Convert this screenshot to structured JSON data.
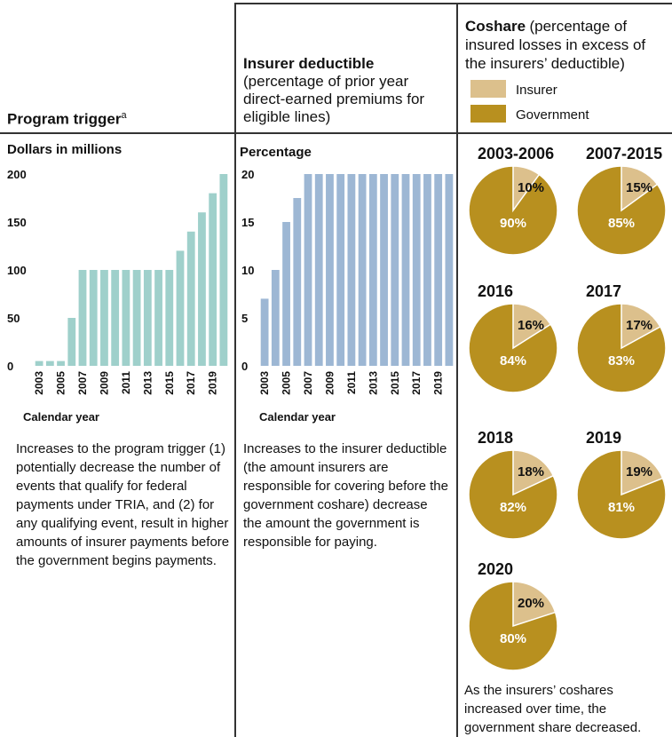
{
  "columns": {
    "trigger": {
      "title": "Program trigger",
      "title_sup": "a",
      "subtitle": "Dollars in millions",
      "xlabel": "Calendar year",
      "description": "Increases to the program trigger (1) potentially decrease the number of events that qualify for federal payments under TRIA, and (2) for any qualifying event, result in higher amounts of insurer payments before the government begins payments."
    },
    "deductible": {
      "title": "Insurer deductible",
      "title_note": "(percentage of prior year direct-earned premiums for eligible lines)",
      "subtitle": "Percentage",
      "xlabel": "Calendar year",
      "description": "Increases to the insurer deductible (the amount insurers are responsible for covering before the government coshare) decrease the amount the government is responsible for paying."
    },
    "coshare": {
      "title": "Coshare",
      "title_note": "(percentage of insured losses in excess of the insurers’ deductible)",
      "legend": [
        {
          "label": "Insurer",
          "color": "#dcc08c"
        },
        {
          "label": "Government",
          "color": "#b8901f"
        }
      ],
      "description": "As the insurers’ coshares increased over time, the government share decreased."
    }
  },
  "colors": {
    "trigger_bar": "#9fd0cb",
    "deductible_bar": "#9db7d4",
    "insurer": "#dcc08c",
    "government": "#b8901f"
  },
  "chart_data": [
    {
      "type": "bar",
      "title": "Program trigger",
      "ylabel": "Dollars in millions",
      "xlabel": "Calendar year",
      "ylim": [
        0,
        200
      ],
      "yticks": [
        0,
        50,
        100,
        150,
        200
      ],
      "categories": [
        "2003",
        "2004",
        "2005",
        "2006",
        "2007",
        "2008",
        "2009",
        "2010",
        "2011",
        "2012",
        "2013",
        "2014",
        "2015",
        "2016",
        "2017",
        "2018",
        "2019",
        "2020"
      ],
      "tick_labels": [
        "2003",
        "2005",
        "2007",
        "2009",
        "2011",
        "2013",
        "2015",
        "2017",
        "2019"
      ],
      "values": [
        5,
        5,
        5,
        50,
        100,
        100,
        100,
        100,
        100,
        100,
        100,
        100,
        100,
        120,
        140,
        160,
        180,
        200
      ]
    },
    {
      "type": "bar",
      "title": "Insurer deductible",
      "ylabel": "Percentage",
      "xlabel": "Calendar year",
      "ylim": [
        0,
        20
      ],
      "yticks": [
        0,
        5,
        10,
        15,
        20
      ],
      "categories": [
        "2003",
        "2004",
        "2005",
        "2006",
        "2007",
        "2008",
        "2009",
        "2010",
        "2011",
        "2012",
        "2013",
        "2014",
        "2015",
        "2016",
        "2017",
        "2018",
        "2019",
        "2020"
      ],
      "tick_labels": [
        "2003",
        "2005",
        "2007",
        "2009",
        "2011",
        "2013",
        "2015",
        "2017",
        "2019"
      ],
      "values": [
        7,
        10,
        15,
        17.5,
        20,
        20,
        20,
        20,
        20,
        20,
        20,
        20,
        20,
        20,
        20,
        20,
        20,
        20
      ]
    },
    {
      "type": "pie",
      "title": "Coshare",
      "series": [
        {
          "period": "2003-2006",
          "insurer": 10,
          "government": 90,
          "insurer_label": "10%",
          "government_label": "90%"
        },
        {
          "period": "2007-2015",
          "insurer": 15,
          "government": 85,
          "insurer_label": "15%",
          "government_label": "85%"
        },
        {
          "period": "2016",
          "insurer": 16,
          "government": 84,
          "insurer_label": "16%",
          "government_label": "84%"
        },
        {
          "period": "2017",
          "insurer": 17,
          "government": 83,
          "insurer_label": "17%",
          "government_label": "83%"
        },
        {
          "period": "2018",
          "insurer": 18,
          "government": 82,
          "insurer_label": "18%",
          "government_label": "82%"
        },
        {
          "period": "2019",
          "insurer": 19,
          "government": 81,
          "insurer_label": "19%",
          "government_label": "81%"
        },
        {
          "period": "2020",
          "insurer": 20,
          "government": 80,
          "insurer_label": "20%",
          "government_label": "80%"
        }
      ]
    }
  ]
}
